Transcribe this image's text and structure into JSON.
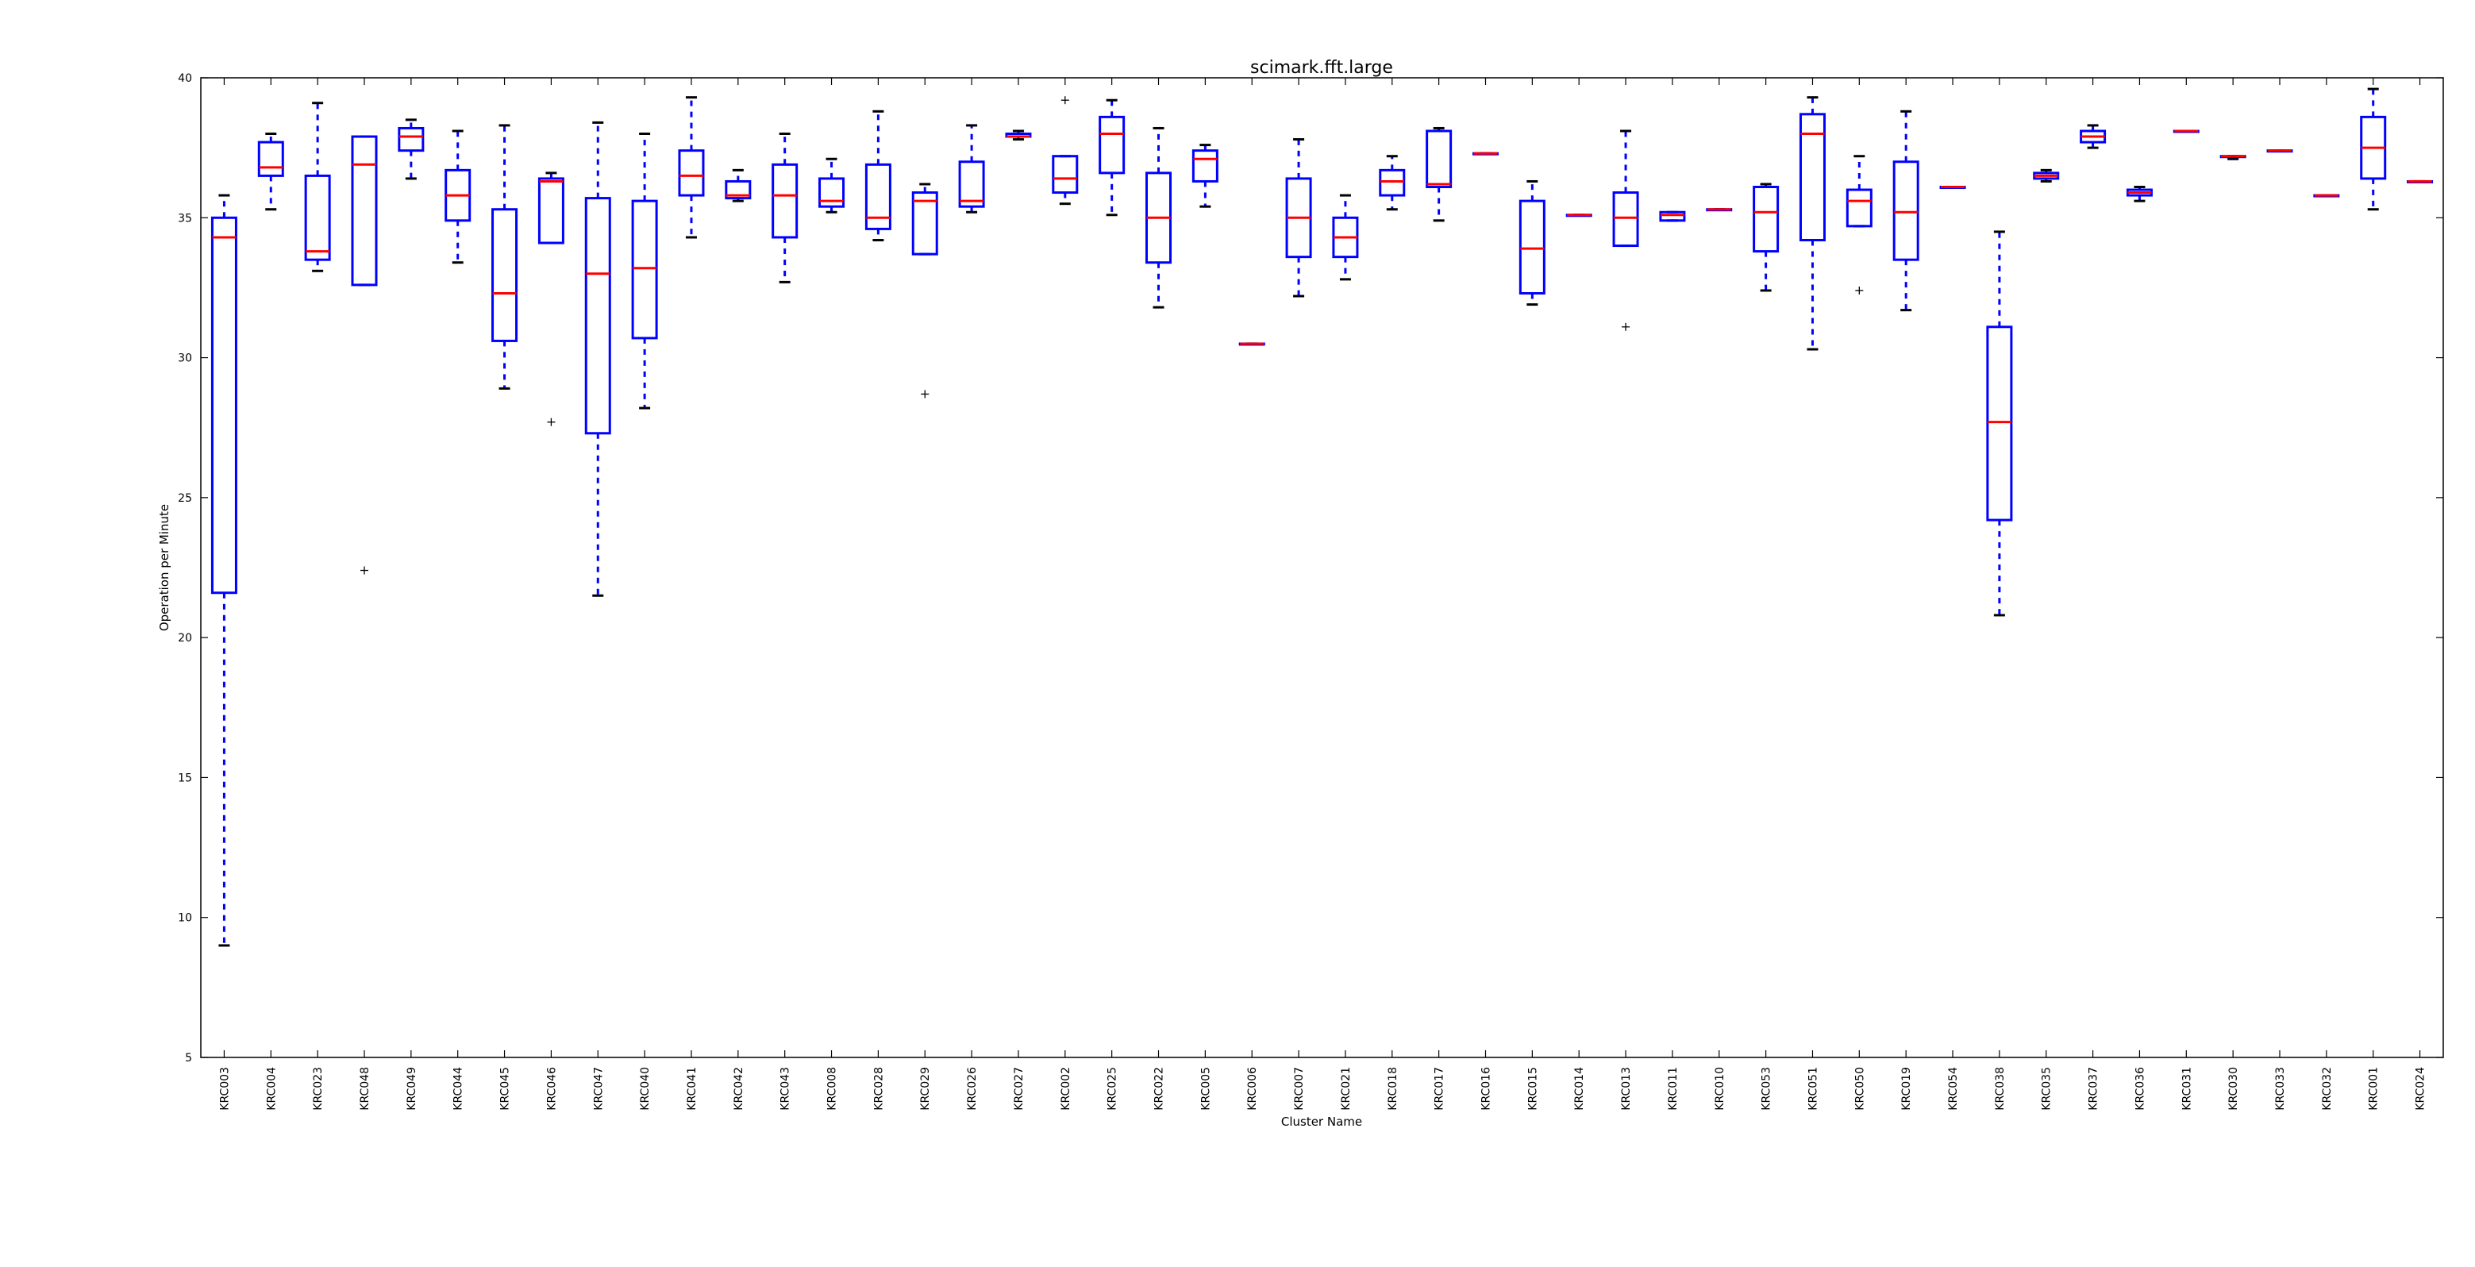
{
  "chart_data": {
    "type": "box",
    "title": "scimark.fft.large",
    "xlabel": "Cluster Name",
    "ylabel": "Operation per Minute",
    "ylim": [
      5,
      40
    ],
    "yticks": [
      5,
      10,
      15,
      20,
      25,
      30,
      35,
      40
    ],
    "grid": false,
    "legend": "none",
    "colors": {
      "box": "#0000ff",
      "median": "#ff0000",
      "flier": "#000000",
      "axis": "#000000"
    },
    "categories": [
      "KRC003",
      "KRC004",
      "KRC023",
      "KRC048",
      "KRC049",
      "KRC044",
      "KRC045",
      "KRC046",
      "KRC047",
      "KRC040",
      "KRC041",
      "KRC042",
      "KRC043",
      "KRC008",
      "KRC028",
      "KRC029",
      "KRC026",
      "KRC027",
      "KRC002",
      "KRC025",
      "KRC022",
      "KRC005",
      "KRC006",
      "KRC007",
      "KRC021",
      "KRC018",
      "KRC017",
      "KRC016",
      "KRC015",
      "KRC014",
      "KRC013",
      "KRC011",
      "KRC010",
      "KRC053",
      "KRC051",
      "KRC050",
      "KRC019",
      "KRC054",
      "KRC038",
      "KRC035",
      "KRC037",
      "KRC036",
      "KRC031",
      "KRC030",
      "KRC033",
      "KRC032",
      "KRC001",
      "KRC024"
    ],
    "boxes": [
      {
        "whislo": 9.0,
        "q1": 21.6,
        "med": 34.3,
        "q3": 35.0,
        "whishi": 35.8,
        "fliers": []
      },
      {
        "whislo": 35.3,
        "q1": 36.5,
        "med": 36.8,
        "q3": 37.7,
        "whishi": 38.0,
        "fliers": []
      },
      {
        "whislo": 33.1,
        "q1": 33.5,
        "med": 33.8,
        "q3": 36.5,
        "whishi": 39.1,
        "fliers": []
      },
      {
        "whislo": 32.6,
        "q1": 32.6,
        "med": 36.9,
        "q3": 37.9,
        "whishi": 37.9,
        "fliers": [
          22.4
        ]
      },
      {
        "whislo": 36.4,
        "q1": 37.4,
        "med": 37.9,
        "q3": 38.2,
        "whishi": 38.5,
        "fliers": []
      },
      {
        "whislo": 33.4,
        "q1": 34.9,
        "med": 35.8,
        "q3": 36.7,
        "whishi": 38.1,
        "fliers": []
      },
      {
        "whislo": 28.9,
        "q1": 30.6,
        "med": 32.3,
        "q3": 35.3,
        "whishi": 38.3,
        "fliers": []
      },
      {
        "whislo": 34.1,
        "q1": 34.1,
        "med": 36.3,
        "q3": 36.4,
        "whishi": 36.6,
        "fliers": [
          27.7
        ]
      },
      {
        "whislo": 21.5,
        "q1": 27.3,
        "med": 33.0,
        "q3": 35.7,
        "whishi": 38.4,
        "fliers": []
      },
      {
        "whislo": 28.2,
        "q1": 30.7,
        "med": 33.2,
        "q3": 35.6,
        "whishi": 38.0,
        "fliers": []
      },
      {
        "whislo": 34.3,
        "q1": 35.8,
        "med": 36.5,
        "q3": 37.4,
        "whishi": 39.3,
        "fliers": []
      },
      {
        "whislo": 35.6,
        "q1": 35.7,
        "med": 35.8,
        "q3": 36.3,
        "whishi": 36.7,
        "fliers": []
      },
      {
        "whislo": 32.7,
        "q1": 34.3,
        "med": 35.8,
        "q3": 36.9,
        "whishi": 38.0,
        "fliers": []
      },
      {
        "whislo": 35.2,
        "q1": 35.4,
        "med": 35.6,
        "q3": 36.4,
        "whishi": 37.1,
        "fliers": []
      },
      {
        "whislo": 34.2,
        "q1": 34.6,
        "med": 35.0,
        "q3": 36.9,
        "whishi": 38.8,
        "fliers": []
      },
      {
        "whislo": 33.7,
        "q1": 33.7,
        "med": 35.6,
        "q3": 35.9,
        "whishi": 36.2,
        "fliers": [
          28.7
        ]
      },
      {
        "whislo": 35.2,
        "q1": 35.4,
        "med": 35.6,
        "q3": 37.0,
        "whishi": 38.3,
        "fliers": []
      },
      {
        "whislo": 37.8,
        "q1": 37.9,
        "med": 37.9,
        "q3": 38.0,
        "whishi": 38.1,
        "fliers": []
      },
      {
        "whislo": 35.5,
        "q1": 35.9,
        "med": 36.4,
        "q3": 37.2,
        "whishi": 37.2,
        "fliers": [
          39.2
        ]
      },
      {
        "whislo": 35.1,
        "q1": 36.6,
        "med": 38.0,
        "q3": 38.6,
        "whishi": 39.2,
        "fliers": []
      },
      {
        "whislo": 31.8,
        "q1": 33.4,
        "med": 35.0,
        "q3": 36.6,
        "whishi": 38.2,
        "fliers": []
      },
      {
        "whislo": 35.4,
        "q1": 36.3,
        "med": 37.1,
        "q3": 37.4,
        "whishi": 37.6,
        "fliers": []
      },
      {
        "whislo": 30.5,
        "q1": 30.5,
        "med": 30.5,
        "q3": 30.5,
        "whishi": 30.5,
        "fliers": []
      },
      {
        "whislo": 32.2,
        "q1": 33.6,
        "med": 35.0,
        "q3": 36.4,
        "whishi": 37.8,
        "fliers": []
      },
      {
        "whislo": 32.8,
        "q1": 33.6,
        "med": 34.3,
        "q3": 35.0,
        "whishi": 35.8,
        "fliers": []
      },
      {
        "whislo": 35.3,
        "q1": 35.8,
        "med": 36.3,
        "q3": 36.7,
        "whishi": 37.2,
        "fliers": []
      },
      {
        "whislo": 34.9,
        "q1": 36.1,
        "med": 36.2,
        "q3": 38.1,
        "whishi": 38.2,
        "fliers": []
      },
      {
        "whislo": 37.3,
        "q1": 37.3,
        "med": 37.3,
        "q3": 37.3,
        "whishi": 37.3,
        "fliers": []
      },
      {
        "whislo": 31.9,
        "q1": 32.3,
        "med": 33.9,
        "q3": 35.6,
        "whishi": 36.3,
        "fliers": []
      },
      {
        "whislo": 35.1,
        "q1": 35.1,
        "med": 35.1,
        "q3": 35.1,
        "whishi": 35.1,
        "fliers": []
      },
      {
        "whislo": 34.0,
        "q1": 34.0,
        "med": 35.0,
        "q3": 35.9,
        "whishi": 38.1,
        "fliers": [
          31.1
        ]
      },
      {
        "whislo": 34.9,
        "q1": 34.9,
        "med": 35.1,
        "q3": 35.2,
        "whishi": 35.2,
        "fliers": []
      },
      {
        "whislo": 35.3,
        "q1": 35.3,
        "med": 35.3,
        "q3": 35.3,
        "whishi": 35.3,
        "fliers": []
      },
      {
        "whislo": 32.4,
        "q1": 33.8,
        "med": 35.2,
        "q3": 36.1,
        "whishi": 36.2,
        "fliers": []
      },
      {
        "whislo": 30.3,
        "q1": 34.2,
        "med": 38.0,
        "q3": 38.7,
        "whishi": 39.3,
        "fliers": []
      },
      {
        "whislo": 34.7,
        "q1": 34.7,
        "med": 35.6,
        "q3": 36.0,
        "whishi": 37.2,
        "fliers": [
          32.4
        ]
      },
      {
        "whislo": 31.7,
        "q1": 33.5,
        "med": 35.2,
        "q3": 37.0,
        "whishi": 38.8,
        "fliers": []
      },
      {
        "whislo": 36.1,
        "q1": 36.1,
        "med": 36.1,
        "q3": 36.1,
        "whishi": 36.1,
        "fliers": []
      },
      {
        "whislo": 20.8,
        "q1": 24.2,
        "med": 27.7,
        "q3": 31.1,
        "whishi": 34.5,
        "fliers": []
      },
      {
        "whislo": 36.3,
        "q1": 36.4,
        "med": 36.5,
        "q3": 36.6,
        "whishi": 36.7,
        "fliers": []
      },
      {
        "whislo": 37.5,
        "q1": 37.7,
        "med": 37.9,
        "q3": 38.1,
        "whishi": 38.3,
        "fliers": []
      },
      {
        "whislo": 35.6,
        "q1": 35.8,
        "med": 35.9,
        "q3": 36.0,
        "whishi": 36.1,
        "fliers": []
      },
      {
        "whislo": 38.1,
        "q1": 38.1,
        "med": 38.1,
        "q3": 38.1,
        "whishi": 38.1,
        "fliers": []
      },
      {
        "whislo": 37.1,
        "q1": 37.2,
        "med": 37.2,
        "q3": 37.2,
        "whishi": 37.2,
        "fliers": []
      },
      {
        "whislo": 37.4,
        "q1": 37.4,
        "med": 37.4,
        "q3": 37.4,
        "whishi": 37.4,
        "fliers": []
      },
      {
        "whislo": 35.8,
        "q1": 35.8,
        "med": 35.8,
        "q3": 35.8,
        "whishi": 35.8,
        "fliers": []
      },
      {
        "whislo": 35.3,
        "q1": 36.4,
        "med": 37.5,
        "q3": 38.6,
        "whishi": 39.6,
        "fliers": []
      },
      {
        "whislo": 36.3,
        "q1": 36.3,
        "med": 36.3,
        "q3": 36.3,
        "whishi": 36.3,
        "fliers": []
      }
    ]
  }
}
